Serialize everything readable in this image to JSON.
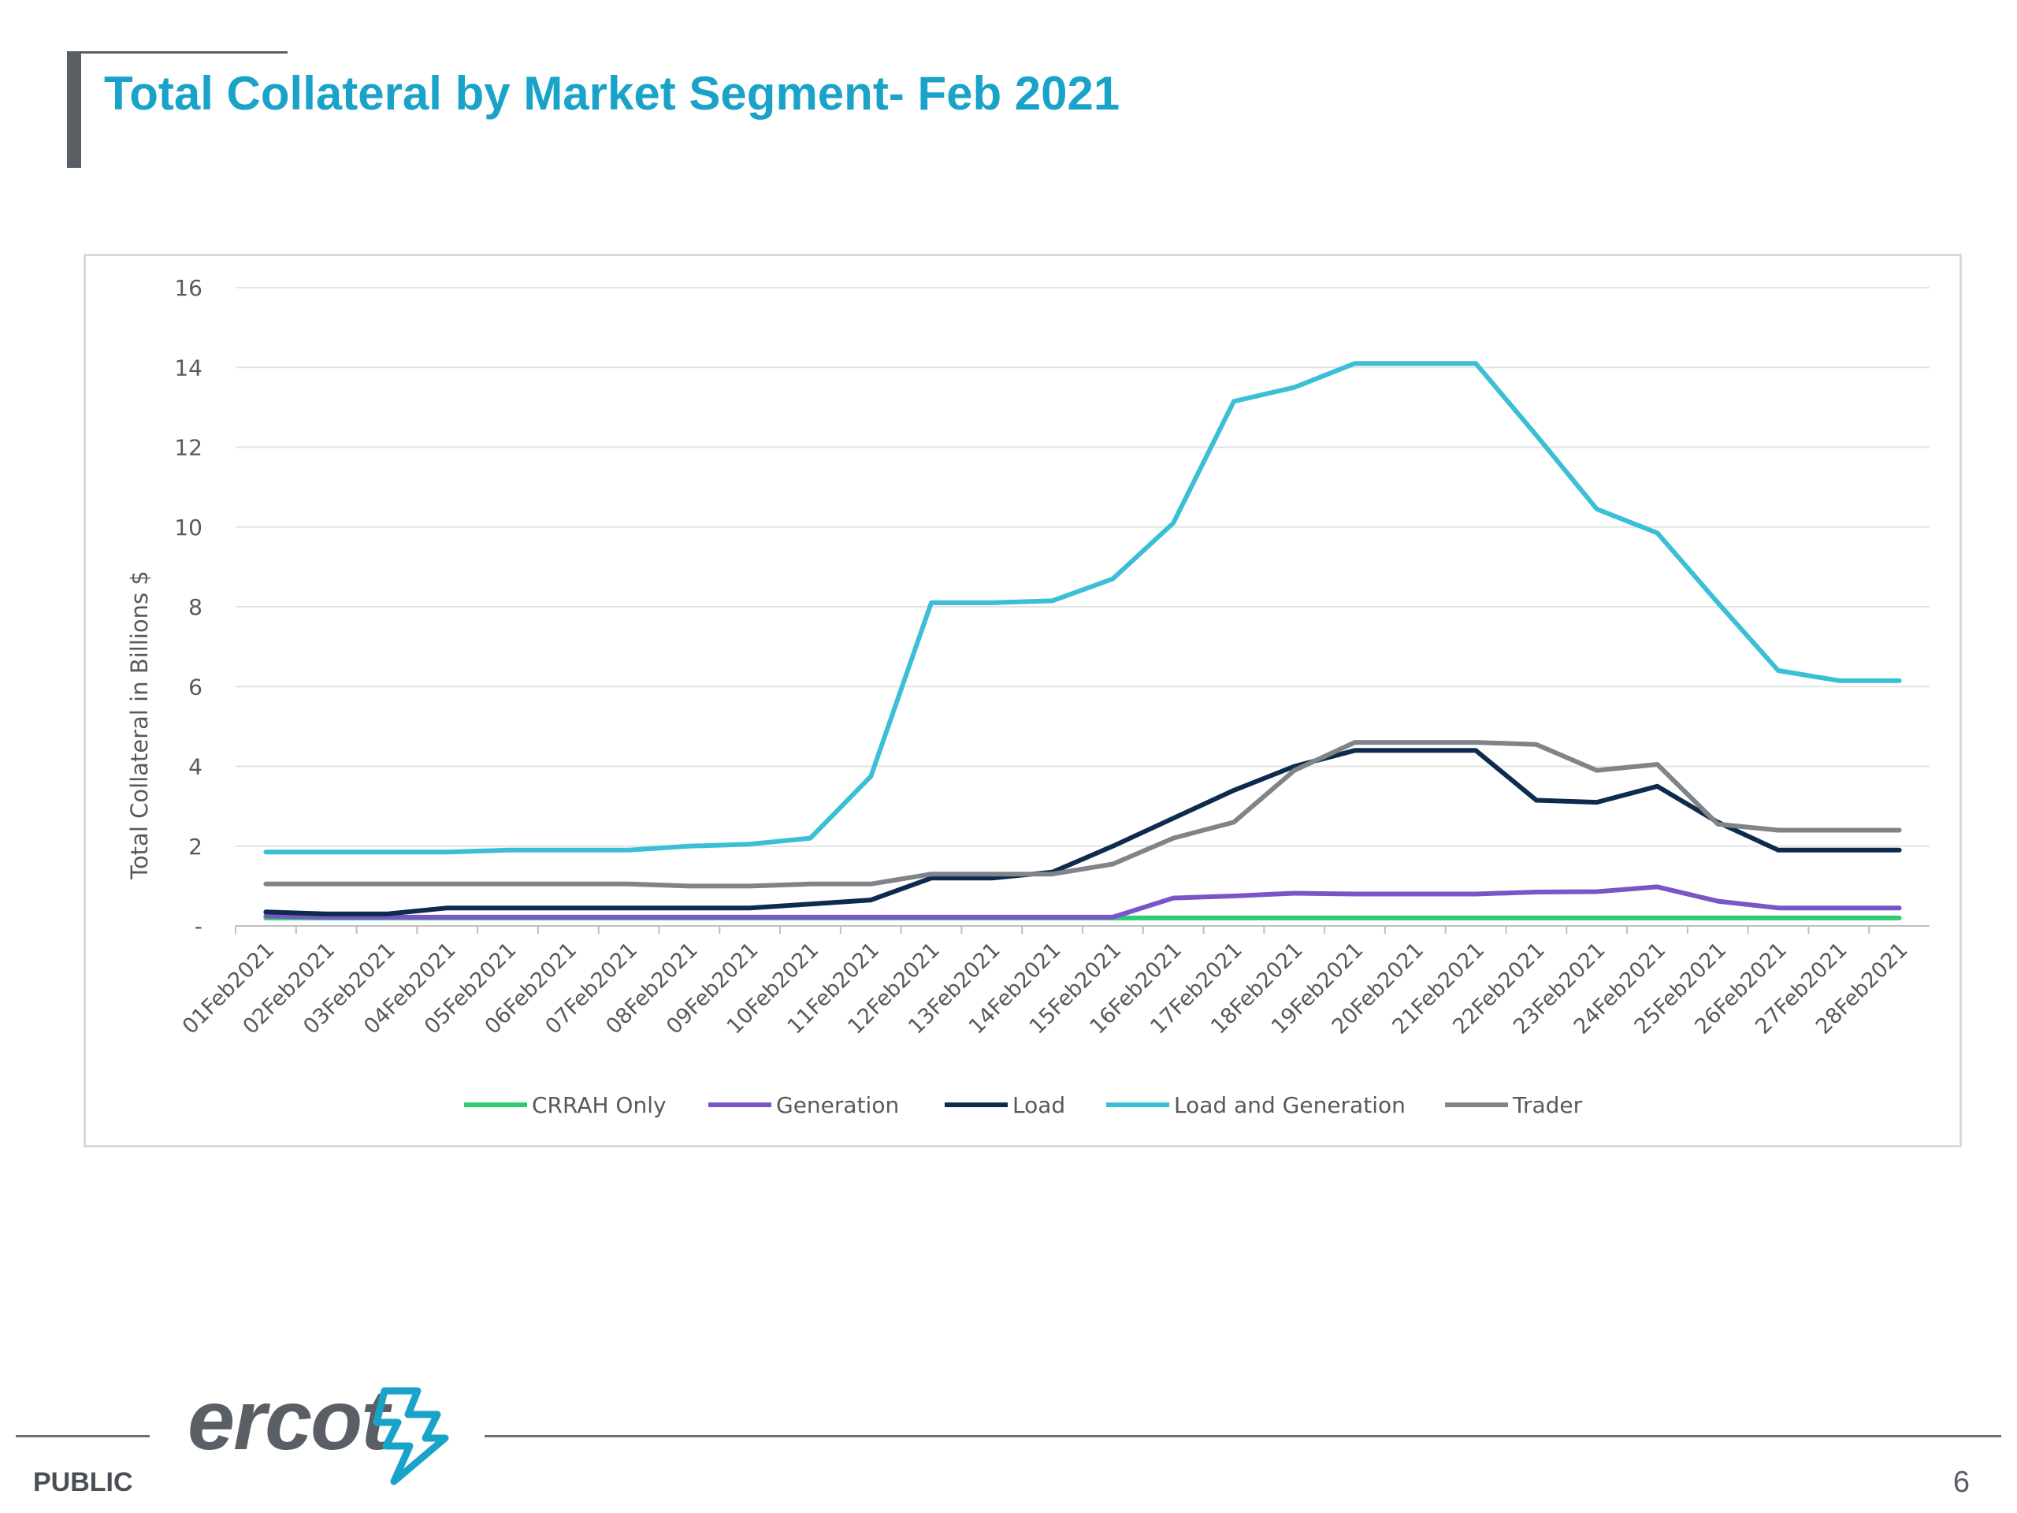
{
  "slide": {
    "title": "Total Collateral by Market Segment- Feb 2021",
    "footer_label": "PUBLIC",
    "page_number": "6",
    "logo_text": "ercot"
  },
  "chart_data": {
    "type": "line",
    "title": "",
    "xlabel": "",
    "ylabel": "Total Collateral in Billions $",
    "ylim": [
      0,
      16
    ],
    "yticks": [
      0,
      2,
      4,
      6,
      8,
      10,
      12,
      14,
      16
    ],
    "ytick_labels": [
      "-",
      "2",
      "4",
      "6",
      "8",
      "10",
      "12",
      "14",
      "16"
    ],
    "grid": true,
    "legend": "bottom",
    "x": [
      "01Feb2021",
      "02Feb2021",
      "03Feb2021",
      "04Feb2021",
      "05Feb2021",
      "06Feb2021",
      "07Feb2021",
      "08Feb2021",
      "09Feb2021",
      "10Feb2021",
      "11Feb2021",
      "12Feb2021",
      "13Feb2021",
      "14Feb2021",
      "15Feb2021",
      "16Feb2021",
      "17Feb2021",
      "18Feb2021",
      "19Feb2021",
      "20Feb2021",
      "21Feb2021",
      "22Feb2021",
      "23Feb2021",
      "24Feb2021",
      "25Feb2021",
      "26Feb2021",
      "27Feb2021",
      "28Feb2021"
    ],
    "series": [
      {
        "name": "CRRAH Only",
        "color": "#2ecc71",
        "values": [
          0.2,
          0.2,
          0.2,
          0.2,
          0.2,
          0.2,
          0.2,
          0.2,
          0.2,
          0.2,
          0.2,
          0.2,
          0.2,
          0.2,
          0.2,
          0.2,
          0.2,
          0.2,
          0.2,
          0.2,
          0.2,
          0.2,
          0.2,
          0.2,
          0.2,
          0.2,
          0.2,
          0.2
        ]
      },
      {
        "name": "Generation",
        "color": "#7b55c7",
        "values": [
          0.25,
          0.22,
          0.22,
          0.22,
          0.22,
          0.22,
          0.22,
          0.22,
          0.22,
          0.22,
          0.22,
          0.22,
          0.22,
          0.22,
          0.22,
          0.7,
          0.75,
          0.82,
          0.8,
          0.8,
          0.8,
          0.85,
          0.86,
          0.98,
          0.62,
          0.45,
          0.45,
          0.45
        ]
      },
      {
        "name": "Load",
        "color": "#0d2b4e",
        "values": [
          0.35,
          0.3,
          0.3,
          0.45,
          0.45,
          0.45,
          0.45,
          0.45,
          0.45,
          0.55,
          0.65,
          1.2,
          1.2,
          1.35,
          2.0,
          2.7,
          3.4,
          4.0,
          4.4,
          4.4,
          4.4,
          3.15,
          3.1,
          3.5,
          2.6,
          1.9,
          1.9,
          1.9
        ]
      },
      {
        "name": "Load and Generation",
        "color": "#3bbfd6",
        "values": [
          1.85,
          1.85,
          1.85,
          1.85,
          1.9,
          1.9,
          1.9,
          2.0,
          2.05,
          2.2,
          3.75,
          8.1,
          8.1,
          8.15,
          8.7,
          10.1,
          13.15,
          13.5,
          14.1,
          14.1,
          14.1,
          12.3,
          10.45,
          9.85,
          8.1,
          6.4,
          6.15,
          6.15
        ]
      },
      {
        "name": "Trader",
        "color": "#808489",
        "values": [
          1.05,
          1.05,
          1.05,
          1.05,
          1.05,
          1.05,
          1.05,
          1.0,
          1.0,
          1.05,
          1.05,
          1.3,
          1.3,
          1.3,
          1.55,
          2.2,
          2.6,
          3.9,
          4.6,
          4.6,
          4.6,
          4.55,
          3.9,
          4.05,
          2.55,
          2.4,
          2.4,
          2.4
        ]
      }
    ]
  }
}
